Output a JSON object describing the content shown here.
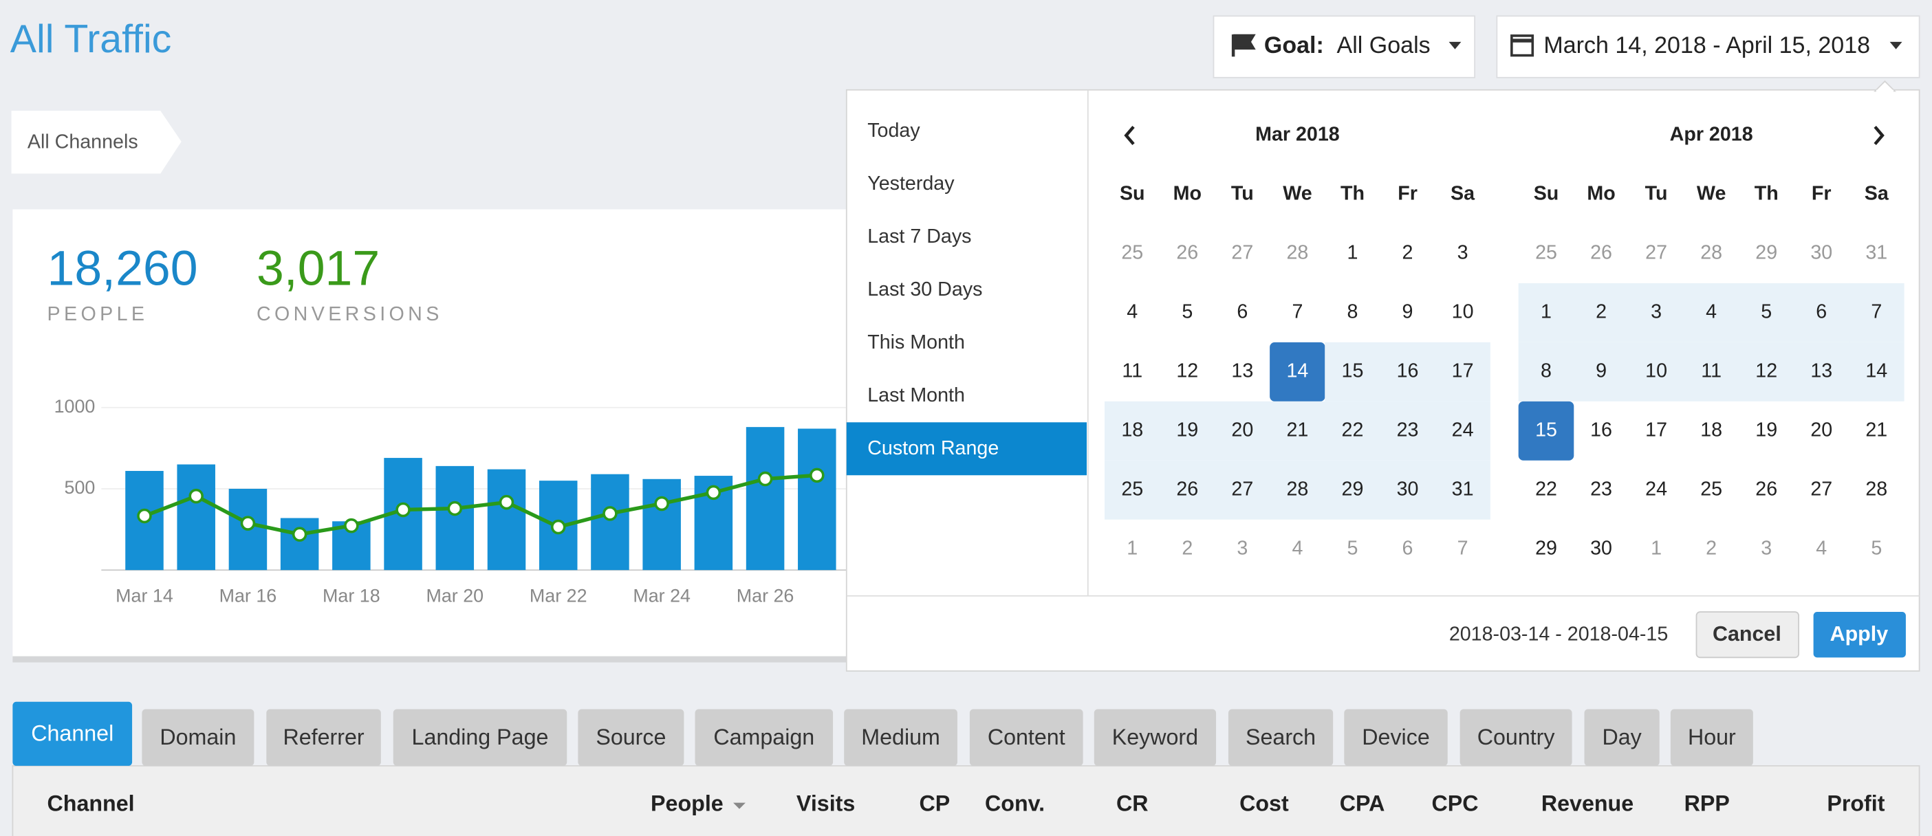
{
  "header": {
    "title": "All Traffic",
    "breadcrumb": "All Channels",
    "goal_label": "Goal:",
    "goal_value": "All Goals",
    "date_range": "March 14, 2018 - April 15, 2018"
  },
  "stats": [
    {
      "value": "18,260",
      "label": "PEOPLE"
    },
    {
      "value": "3,017",
      "label": "CONVERSIONS"
    }
  ],
  "chart": {
    "type": "bar",
    "categories": [
      "Mar 14",
      null,
      "Mar 16",
      null,
      "Mar 18",
      null,
      "Mar 20",
      null,
      "Mar 22",
      null,
      "Mar 24",
      null,
      "Mar 26",
      null
    ],
    "series": [
      {
        "type": "bar",
        "color": "#1590d6",
        "values": [
          610,
          650,
          500,
          320,
          300,
          690,
          640,
          620,
          550,
          590,
          560,
          580,
          880,
          870
        ]
      },
      {
        "type": "line",
        "color": "#2a9a1a",
        "values": [
          333,
          455,
          288,
          220,
          273,
          371,
          379,
          417,
          265,
          348,
          409,
          477,
          561,
          583
        ]
      }
    ],
    "ylim": [
      0,
      1000
    ],
    "yticks": [
      500,
      1000
    ],
    "grid": true
  },
  "picker": {
    "ranges": [
      "Today",
      "Yesterday",
      "Last 7 Days",
      "Last 30 Days",
      "This Month",
      "Last Month",
      "Custom Range"
    ],
    "weekdays": [
      "Su",
      "Mo",
      "Tu",
      "We",
      "Th",
      "Fr",
      "Sa"
    ],
    "calendars": [
      {
        "title": "Mar 2018",
        "weeks": [
          [
            25,
            26,
            27,
            28,
            1,
            2,
            3
          ],
          [
            4,
            5,
            6,
            7,
            8,
            9,
            10
          ],
          [
            11,
            12,
            13,
            14,
            15,
            16,
            17
          ],
          [
            18,
            19,
            20,
            21,
            22,
            23,
            24
          ],
          [
            25,
            26,
            27,
            28,
            29,
            30,
            31
          ],
          [
            1,
            2,
            3,
            4,
            5,
            6,
            7
          ]
        ]
      },
      {
        "title": "Apr 2018",
        "weeks": [
          [
            25,
            26,
            27,
            28,
            29,
            30,
            31
          ],
          [
            1,
            2,
            3,
            4,
            5,
            6,
            7
          ],
          [
            8,
            9,
            10,
            11,
            12,
            13,
            14
          ],
          [
            15,
            16,
            17,
            18,
            19,
            20,
            21
          ],
          [
            22,
            23,
            24,
            25,
            26,
            27,
            28
          ],
          [
            29,
            30,
            1,
            2,
            3,
            4,
            5
          ]
        ]
      }
    ],
    "selected_text": "2018-03-14 - 2018-04-15",
    "cancel": "Cancel",
    "apply": "Apply"
  },
  "tabs": [
    "Channel",
    "Domain",
    "Referrer",
    "Landing Page",
    "Source",
    "Campaign",
    "Medium",
    "Content",
    "Keyword",
    "Search",
    "Device",
    "Country",
    "Day",
    "Hour"
  ],
  "table": {
    "columns": [
      "Channel",
      "People",
      "Visits",
      "CP",
      "Conv.",
      "CR",
      "Cost",
      "CPA",
      "CPC",
      "Revenue",
      "RPP",
      "Profit"
    ]
  }
}
